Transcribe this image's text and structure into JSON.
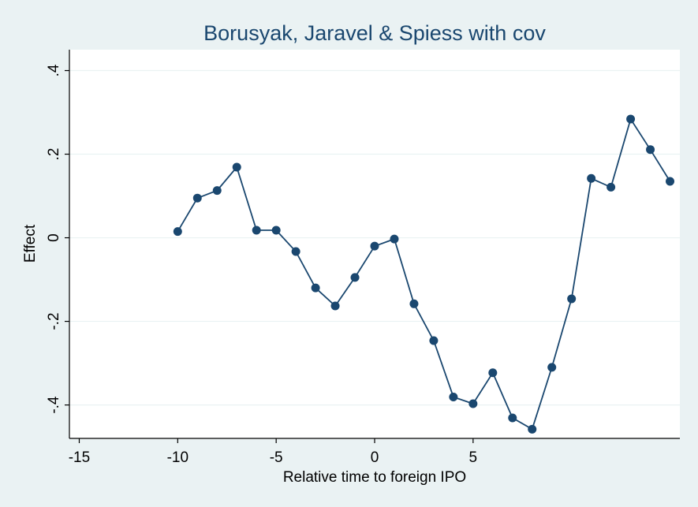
{
  "chart_data": {
    "type": "line",
    "title": "Borusyak, Jaravel & Spiess with cov",
    "xlabel": "Relative time to foreign IPO",
    "ylabel": "Effect",
    "xlim": [
      -15.5,
      15.5
    ],
    "ylim": [
      -0.48,
      0.45
    ],
    "x_ticks": [
      -15,
      -10,
      -5,
      0,
      5
    ],
    "x_tick_labels": [
      "-15",
      "-10",
      "-5",
      "0",
      "5"
    ],
    "y_ticks": [
      -0.4,
      -0.2,
      0,
      0.2,
      0.4
    ],
    "y_tick_labels": [
      "-.4",
      "-.2",
      "0",
      ".2",
      ".4"
    ],
    "grid": true,
    "marker": "circle",
    "color": "#1a476f",
    "background": "#eaf2f3",
    "plot_background": "#ffffff",
    "series": [
      {
        "x": [
          -10,
          -9,
          -8,
          -7,
          -6,
          -5,
          -4,
          -3,
          -2,
          -1,
          0,
          1,
          2,
          3,
          4,
          5,
          6,
          7,
          8,
          9,
          10,
          11,
          12,
          13,
          14,
          15
        ],
        "values": [
          0.015,
          0.095,
          0.113,
          0.169,
          0.018,
          0.018,
          -0.033,
          -0.12,
          -0.163,
          -0.095,
          -0.02,
          -0.003,
          -0.158,
          -0.246,
          -0.381,
          -0.397,
          -0.323,
          -0.431,
          -0.458,
          -0.31,
          -0.146,
          0.142,
          0.121,
          0.284,
          0.211,
          0.135
        ]
      }
    ]
  }
}
